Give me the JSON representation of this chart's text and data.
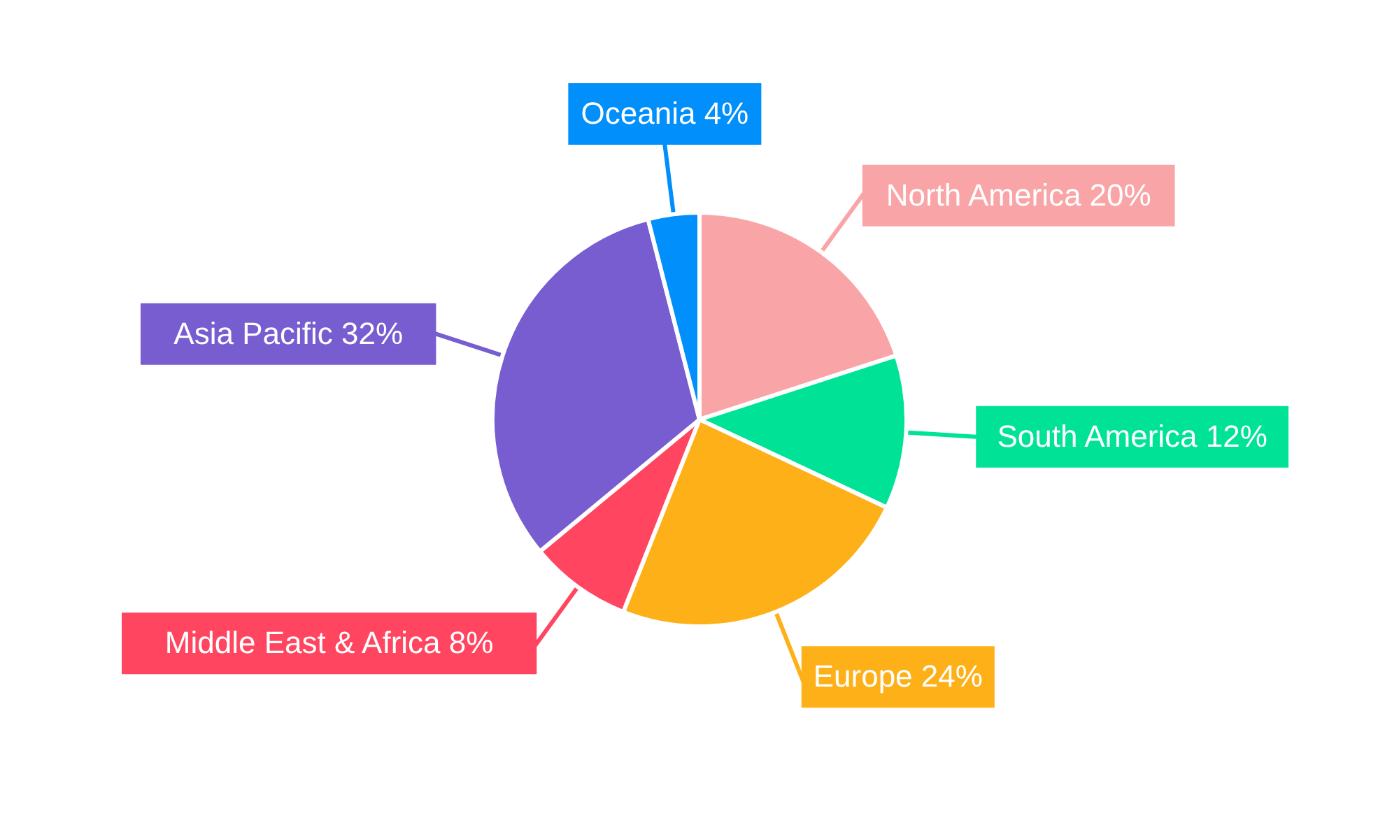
{
  "chart_data": {
    "type": "pie",
    "categories": [
      "North America",
      "South America",
      "Europe",
      "Middle East & Africa",
      "Asia Pacific",
      "Oceania"
    ],
    "values": [
      20,
      12,
      24,
      8,
      32,
      4
    ],
    "value_labels": [
      "20%",
      "12%",
      "24%",
      "8%",
      "32%",
      "4%"
    ],
    "colors": [
      "#f9a5a7",
      "#00e396",
      "#feb019",
      "#ff4560",
      "#775dd0",
      "#008ffb"
    ]
  }
}
